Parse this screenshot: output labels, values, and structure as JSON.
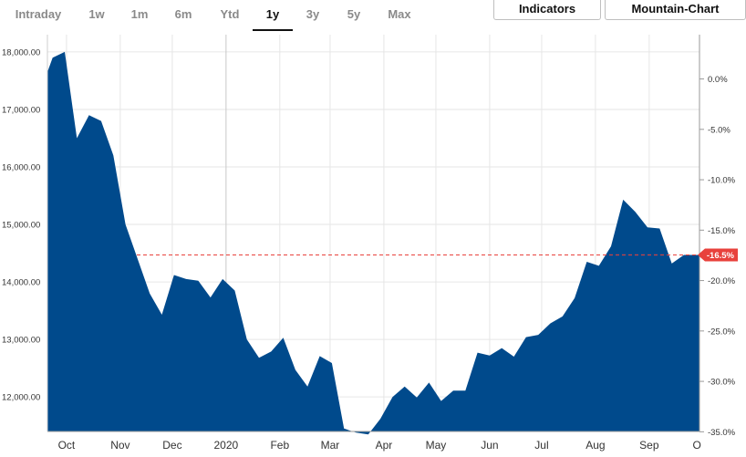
{
  "ranges": [
    "Intraday",
    "1w",
    "1m",
    "6m",
    "Ytd",
    "1y",
    "3y",
    "5y",
    "Max"
  ],
  "active_range": "1y",
  "toolbar": {
    "indicators_label": "Indicators",
    "chart_type_label": "Mountain-Chart"
  },
  "colors": {
    "area": "#004a8c",
    "marker": "#e8413c",
    "grid": "#e6e6e6"
  },
  "current_label": "-16.5%",
  "chart_data": {
    "type": "area",
    "title": "",
    "xlabel": "",
    "ylabel": "",
    "ylim": [
      11400,
      18300
    ],
    "y_ticks": [
      "12,000.00",
      "13,000.00",
      "14,000.00",
      "15,000.00",
      "16,000.00",
      "17,000.00",
      "18,000.00"
    ],
    "y_tick_values": [
      12000,
      13000,
      14000,
      15000,
      16000,
      17000,
      18000
    ],
    "y2_ticks": [
      "0.0%",
      "-5.0%",
      "-10.0%",
      "-15.0%",
      "-20.0%",
      "-25.0%",
      "-30.0%",
      "-35.0%"
    ],
    "y2_tick_values": [
      0,
      -5,
      -10,
      -15,
      -20,
      -25,
      -30,
      -35
    ],
    "y2_reference_value": 17530,
    "x_ticks": [
      "Oct",
      "Nov",
      "Dec",
      "2020",
      "Feb",
      "Mar",
      "Apr",
      "May",
      "Jun",
      "Jul",
      "Aug",
      "Sep",
      "O"
    ],
    "x_tick_dates": [
      "2019-10-01",
      "2019-11-01",
      "2019-12-01",
      "2020-01-01",
      "2020-02-01",
      "2020-03-01",
      "2020-04-01",
      "2020-05-01",
      "2020-06-01",
      "2020-07-01",
      "2020-08-01",
      "2020-09-01",
      "2020-10-01"
    ],
    "x_range": [
      "2019-09-20",
      "2020-09-30"
    ],
    "current_value": 14470,
    "grid": true,
    "series": [
      {
        "x": [
          "2019-09-20",
          "2019-09-23",
          "2019-09-30",
          "2019-10-07",
          "2019-10-14",
          "2019-10-21",
          "2019-10-28",
          "2019-11-04",
          "2019-11-11",
          "2019-11-18",
          "2019-11-25",
          "2019-12-02",
          "2019-12-09",
          "2019-12-16",
          "2019-12-23",
          "2019-12-30",
          "2020-01-06",
          "2020-01-13",
          "2020-01-20",
          "2020-01-27",
          "2020-02-03",
          "2020-02-10",
          "2020-02-17",
          "2020-02-24",
          "2020-03-02",
          "2020-03-09",
          "2020-03-16",
          "2020-03-23",
          "2020-03-30",
          "2020-04-06",
          "2020-04-13",
          "2020-04-20",
          "2020-04-27",
          "2020-05-04",
          "2020-05-11",
          "2020-05-18",
          "2020-05-25",
          "2020-06-01",
          "2020-06-08",
          "2020-06-15",
          "2020-06-22",
          "2020-06-29",
          "2020-07-06",
          "2020-07-13",
          "2020-07-20",
          "2020-07-27",
          "2020-08-03",
          "2020-08-10",
          "2020-08-17",
          "2020-08-24",
          "2020-08-31",
          "2020-09-07",
          "2020-09-14",
          "2020-09-21",
          "2020-09-28",
          "2020-09-30"
        ],
        "values": [
          17650,
          17900,
          18000,
          16500,
          16900,
          16800,
          16200,
          15000,
          14400,
          13800,
          13430,
          14120,
          14050,
          14020,
          13730,
          14050,
          13850,
          13000,
          12680,
          12790,
          13030,
          12470,
          12180,
          12710,
          12590,
          11450,
          11380,
          11350,
          11620,
          12000,
          12180,
          11990,
          12250,
          11930,
          12110,
          12110,
          12770,
          12720,
          12850,
          12700,
          13040,
          13080,
          13280,
          13400,
          13720,
          14350,
          14280,
          14620,
          15430,
          15220,
          14950,
          14930,
          14320,
          14470,
          14470,
          14470
        ]
      }
    ]
  }
}
